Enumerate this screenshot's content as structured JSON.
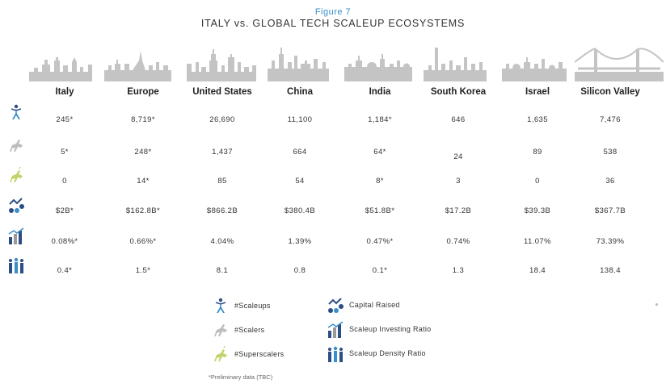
{
  "header": {
    "figure_label": "Figure 7",
    "title": "ITALY vs. GLOBAL TECH SCALEUP ECOSYSTEMS"
  },
  "columns": [
    "Italy",
    "Europe",
    "United States",
    "China",
    "India",
    "South Korea",
    "Israel",
    "Silicon Valley"
  ],
  "rows": [
    {
      "icon": "scaleups-icon",
      "values": [
        "245*",
        "8,719*",
        "26,690",
        "11,100",
        "1,184*",
        "646",
        "1,635",
        "7,476"
      ]
    },
    {
      "icon": "scalers-icon",
      "values": [
        "5*",
        "248*",
        "1,437",
        "664",
        "64*",
        "24",
        "89",
        "538"
      ]
    },
    {
      "icon": "superscalers-icon",
      "values": [
        "0",
        "14*",
        "85",
        "54",
        "8*",
        "3",
        "0",
        "36"
      ]
    },
    {
      "icon": "capital-raised-icon",
      "values": [
        "$2B*",
        "$162.8B*",
        "$866.2B",
        "$380.4B",
        "$51.8B*",
        "$17.2B",
        "$39.3B",
        "$367.7B"
      ]
    },
    {
      "icon": "scaleup-investing-ratio-icon",
      "values": [
        "0.08%*",
        "0.66%*",
        "4.04%",
        "1.39%",
        "0.47%*",
        "0.74%",
        "11.07%",
        "73.39%"
      ]
    },
    {
      "icon": "scaleup-density-ratio-icon",
      "values": [
        "0.4*",
        "1.5*",
        "8.1",
        "0.8",
        "0.1*",
        "1.3",
        "18.4",
        "138.4"
      ]
    }
  ],
  "legend": [
    {
      "icon": "scaleups-icon",
      "label": "#Scaleups"
    },
    {
      "icon": "scalers-icon",
      "label": "#Scalers"
    },
    {
      "icon": "superscalers-icon",
      "label": "#Superscalers"
    },
    {
      "icon": "capital-raised-icon",
      "label": "Capital Raised"
    },
    {
      "icon": "scaleup-investing-ratio-icon",
      "label": "Scaleup Investing Ratio"
    },
    {
      "icon": "scaleup-density-ratio-icon",
      "label": "Scaleup Density Ratio"
    }
  ],
  "footnote": "*Preliminary data (TBC)",
  "colors": {
    "accent_blue": "#3a8fc8",
    "navy": "#2c4e86",
    "skyline_gray": "#c4c4c4",
    "scaler_gray": "#bdbdbd",
    "superscaler_green": "#c3d36a"
  }
}
